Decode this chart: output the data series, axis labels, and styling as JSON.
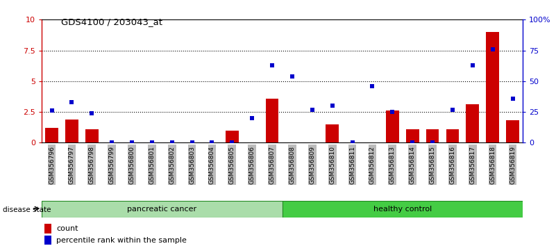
{
  "title": "GDS4100 / 203043_at",
  "samples": [
    "GSM356796",
    "GSM356797",
    "GSM356798",
    "GSM356799",
    "GSM356800",
    "GSM356801",
    "GSM356802",
    "GSM356803",
    "GSM356804",
    "GSM356805",
    "GSM356806",
    "GSM356807",
    "GSM356808",
    "GSM356809",
    "GSM356810",
    "GSM356811",
    "GSM356812",
    "GSM356813",
    "GSM356814",
    "GSM356815",
    "GSM356816",
    "GSM356817",
    "GSM356818",
    "GSM356819"
  ],
  "count_values": [
    1.2,
    1.9,
    1.1,
    0.0,
    0.0,
    0.0,
    0.0,
    0.0,
    0.0,
    1.0,
    0.0,
    3.6,
    0.0,
    0.0,
    1.5,
    0.0,
    0.0,
    2.6,
    1.1,
    1.1,
    1.1,
    3.1,
    9.0,
    1.8
  ],
  "percentile_values": [
    26,
    33,
    24,
    0,
    0,
    0,
    0,
    0,
    0,
    0,
    20,
    63,
    54,
    27,
    30,
    0,
    46,
    25,
    0,
    0,
    27,
    63,
    76,
    36
  ],
  "bar_color": "#cc0000",
  "scatter_color": "#0000cc",
  "ylim_left": [
    0,
    10
  ],
  "ylim_right": [
    0,
    100
  ],
  "yticks_left": [
    0,
    2.5,
    5.0,
    7.5,
    10
  ],
  "yticks_right": [
    0,
    25,
    50,
    75,
    100
  ],
  "ytick_labels_left": [
    "0",
    "2.5",
    "5",
    "7.5",
    "10"
  ],
  "ytick_labels_right": [
    "0",
    "25",
    "50",
    "75",
    "100%"
  ],
  "hlines": [
    2.5,
    5.0,
    7.5
  ],
  "group1_label": "pancreatic cancer",
  "group2_label": "healthy control",
  "group1_count": 12,
  "group2_count": 12,
  "group1_color": "#aaddaa",
  "group2_color": "#44cc44",
  "group_border_color": "#228822",
  "disease_state_label": "disease state",
  "legend_count_label": "count",
  "legend_percentile_label": "percentile rank within the sample",
  "tick_bg_color": "#bbbbbb",
  "fig_bg_color": "#ffffff"
}
